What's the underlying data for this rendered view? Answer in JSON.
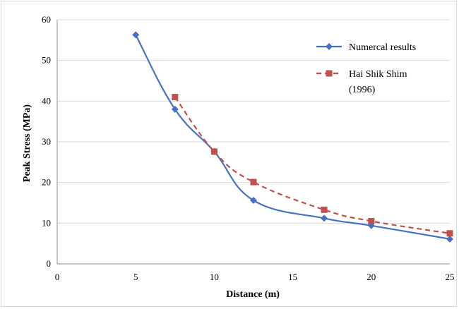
{
  "chart_data": {
    "type": "line",
    "title": "",
    "xlabel": "Distance (m)",
    "ylabel": "Peak Stress (MPa)",
    "xlim": [
      0,
      25
    ],
    "ylim": [
      0,
      60
    ],
    "xticks": [
      0,
      5,
      10,
      15,
      20,
      25
    ],
    "yticks": [
      0,
      10,
      20,
      30,
      40,
      50,
      60
    ],
    "grid": "horizontal",
    "legend_position": "top-right",
    "series": [
      {
        "name": "Numercal results",
        "color": "#4472c4",
        "marker": "diamond",
        "line_style": "solid",
        "x": [
          5,
          7.5,
          10,
          12.5,
          17,
          20,
          25
        ],
        "y": [
          56.3,
          38,
          27.6,
          15.6,
          11.2,
          9.4,
          6.1
        ]
      },
      {
        "name": "Hai Shik Shim (1996)",
        "color": "#c0504d",
        "marker": "square",
        "line_style": "dashed",
        "x": [
          7.5,
          10,
          12.5,
          17,
          20,
          25
        ],
        "y": [
          41,
          27.6,
          20.1,
          13.3,
          10.5,
          7.5
        ]
      }
    ]
  }
}
